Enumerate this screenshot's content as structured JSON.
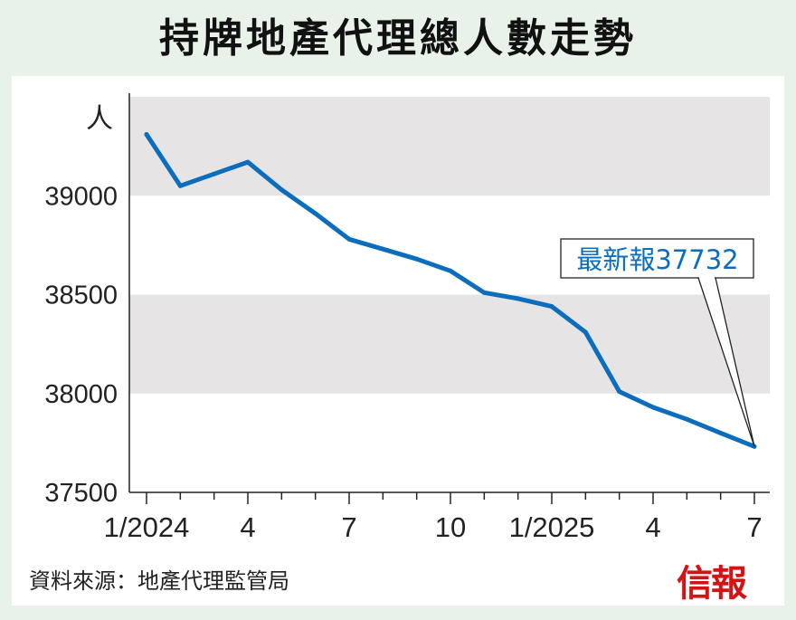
{
  "title": "持牌地產代理總人數走勢",
  "source": "資料來源：地產代理監管局",
  "logo": "信報",
  "colors": {
    "line": "#0b6dbb",
    "band": "#e6e4e5",
    "background": "#e9f2e9",
    "logo": "#d41414"
  },
  "chart_data": {
    "type": "line",
    "unit": "人",
    "ylim": [
      37500,
      39500
    ],
    "yticks": [
      37500,
      38000,
      38500,
      39000
    ],
    "xticks": [
      "1/2024",
      "4",
      "7",
      "10",
      "1/2025",
      "4",
      "7"
    ],
    "x": [
      "2024-01",
      "2024-02",
      "2024-03",
      "2024-04",
      "2024-05",
      "2024-06",
      "2024-07",
      "2024-08",
      "2024-09",
      "2024-10",
      "2024-11",
      "2024-12",
      "2025-01",
      "2025-02",
      "2025-03",
      "2025-04",
      "2025-05",
      "2025-06",
      "2025-07"
    ],
    "values": [
      39310,
      39050,
      39110,
      39170,
      39030,
      38910,
      38780,
      38730,
      38680,
      38620,
      38510,
      38480,
      38440,
      38310,
      38010,
      37930,
      37870,
      37800,
      37732
    ],
    "annotation": {
      "text": "最新報37732",
      "value": 37732
    }
  }
}
